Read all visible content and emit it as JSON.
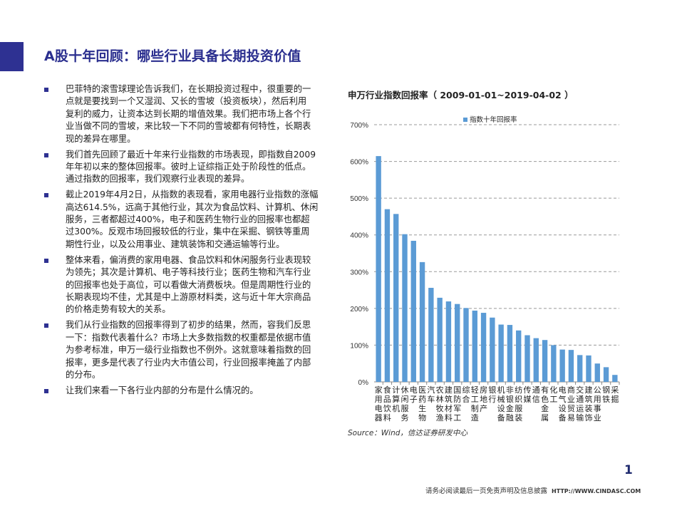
{
  "header": {
    "title": "A股十年回顾：哪些行业具备长期投资价值"
  },
  "paragraphs": [
    {
      "lines": [
        "巴菲特的滚雪球理论告诉我们，在长期投资过程中，很重要的一",
        "点就是要找到一个又湿润、又长的雪坡（投资板块），然后利用",
        "复利的威力，让资本达到长期的增值效果。我们把市场上各个行",
        "业当做不同的雪坡，来比较一下不同的雪坡都有何特性，长期表",
        "现的差异在哪里。"
      ]
    },
    {
      "lines": [
        "我们首先回顾了最近十年来行业指数的市场表现，即指数自2009",
        "年年初以来的整体回报率。彼时上证综指正处于阶段性的低点。",
        "通过指数的回报率，我们观察行业表现的差异。"
      ]
    },
    {
      "lines": [
        "截止2019年4月2日，从指数的表现看，家用电器行业指数的涨幅",
        "高达614.5%，远高于其他行业，其次为食品饮料、计算机、休闲",
        "服务，三者都超过400%，电子和医药生物行业的回报率也都超",
        "过300%。反观市场回报较低的行业，集中在采掘、钢铁等重周",
        "期性行业，以及公用事业、建筑装饰和交通运输等行业。"
      ]
    },
    {
      "lines": [
        "整体来看，偏消费的家用电器、食品饮料和休闲服务行业表现较",
        "为领先；其次是计算机、电子等科技行业；医药生物和汽车行业",
        "的回报率也处于高位，可以看做大消费板块。但是周期性行业的",
        "长期表现均不佳，尤其是中上游原材料类，这与近十年大宗商品",
        "的价格走势有较大的关系。"
      ]
    },
    {
      "lines": [
        "我们从行业指数的回报率得到了初步的结果，然而，容我们反思",
        "一下：指数代表着什么？市场上大多数指数的权重都是依据市值",
        "为参考标准，申万一级行业指数也不例外。这就意味着指数的回",
        "报率，更多是代表了行业内大市值公司，行业回报率掩盖了内部",
        "的分布。"
      ]
    },
    {
      "lines": [
        "让我们来看一下各行业内部的分布是什么情况的。"
      ]
    }
  ],
  "chart_data": {
    "type": "bar",
    "title": "申万行业指数回报率（ 2009-01-01~2019-04-02 ）",
    "legend": "指数十年回报率",
    "legend_position": "top",
    "color": "#5b9bd5",
    "categories": [
      "家用电器",
      "食品饮料",
      "计算机",
      "休闲服务",
      "电子",
      "医药生物",
      "汽车",
      "农林牧渔",
      "建筑材料",
      "国防军工",
      "综合",
      "轻工制造",
      "房地产",
      "银行",
      "机械设备",
      "非银金融",
      "纺织服装",
      "传媒",
      "通信",
      "有色金属",
      "化工",
      "电气设备",
      "商业贸易",
      "交通运输",
      "建筑装饰",
      "公用事业",
      "钢铁",
      "采掘"
    ],
    "values": [
      614.5,
      470,
      457,
      402,
      384,
      326,
      256,
      229,
      219,
      212,
      201,
      194,
      188,
      175,
      156,
      155,
      140,
      127,
      119,
      114,
      100,
      88,
      87,
      73,
      72,
      50,
      40,
      19
    ],
    "ylim": [
      0,
      700
    ],
    "yticks": [
      "0%",
      "100%",
      "200%",
      "300%",
      "400%",
      "500%",
      "600%",
      "700%"
    ],
    "grid": true
  },
  "source": "Source：Wind，信达证券研发中心",
  "footer": {
    "page": "1",
    "disclaimer": "请务必阅读最后一页免责声明及信息披露",
    "url": "HTTP://WWW.CINDASC.COM"
  },
  "colors": {
    "brand": "#2e3192"
  }
}
